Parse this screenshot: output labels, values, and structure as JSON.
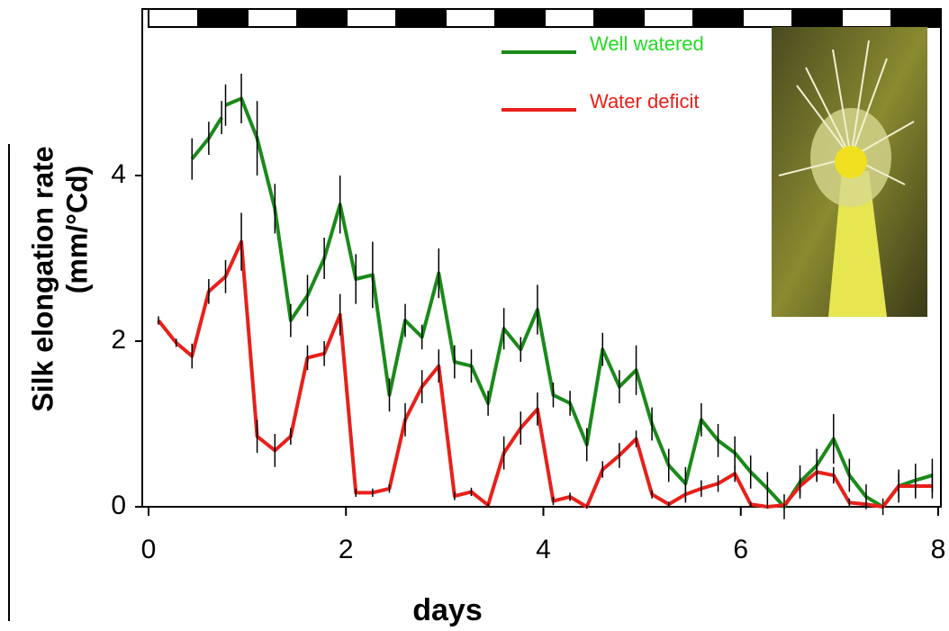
{
  "chart_data": {
    "type": "line",
    "xlabel": "days",
    "ylabel": [
      "Silk elongation rate",
      "(mm/°Cd)"
    ],
    "xlim": [
      0,
      8
    ],
    "xticks": [
      0,
      2,
      4,
      6,
      8
    ],
    "ylim": [
      0,
      6
    ],
    "yticks": [
      0,
      2,
      4
    ],
    "series": [
      {
        "name": "Well watered",
        "color": "#1a8a1a",
        "x": [
          0.44,
          0.61,
          0.74,
          0.76,
          0.78,
          0.94,
          1.1,
          1.28,
          1.44,
          1.61,
          1.78,
          1.94,
          2.1,
          2.27,
          2.44,
          2.6,
          2.77,
          2.94,
          3.1,
          3.27,
          3.44,
          3.6,
          3.77,
          3.94,
          4.1,
          4.27,
          4.44,
          4.6,
          4.77,
          4.94,
          5.1,
          5.27,
          5.44,
          5.6,
          5.77,
          5.94,
          6.1,
          6.27,
          6.44,
          6.6,
          6.77,
          6.94,
          7.1,
          7.27,
          7.44,
          7.6,
          7.77,
          7.94
        ],
        "values": [
          4.2,
          4.45,
          4.7,
          null,
          4.85,
          4.93,
          4.45,
          3.6,
          2.25,
          2.55,
          3.0,
          3.65,
          2.75,
          2.8,
          1.35,
          2.25,
          2.05,
          2.82,
          1.75,
          1.7,
          1.25,
          2.15,
          1.9,
          2.38,
          1.35,
          1.25,
          0.75,
          1.9,
          1.45,
          1.65,
          1.0,
          0.5,
          0.28,
          1.05,
          0.8,
          0.65,
          0.42,
          0.22,
          0.0,
          0.3,
          0.5,
          0.82,
          0.38,
          0.12,
          0.0,
          0.25,
          0.32,
          0.38
        ],
        "errors": [
          0.25,
          0.2,
          0.2,
          null,
          0.25,
          0.3,
          0.45,
          0.3,
          0.2,
          0.25,
          0.25,
          0.35,
          0.3,
          0.4,
          0.2,
          0.2,
          0.15,
          0.3,
          0.2,
          0.2,
          0.15,
          0.25,
          0.15,
          0.3,
          0.15,
          0.15,
          0.2,
          0.2,
          0.2,
          0.3,
          0.2,
          0.2,
          0.2,
          0.2,
          0.2,
          0.2,
          0.2,
          0.2,
          0.15,
          0.2,
          0.2,
          0.3,
          0.2,
          0.15,
          0.1,
          0.2,
          0.2,
          0.2
        ]
      },
      {
        "name": "Water deficit",
        "color": "#e8201a",
        "x": [
          0.1,
          0.28,
          0.44,
          0.61,
          0.78,
          0.94,
          1.1,
          1.28,
          1.44,
          1.61,
          1.78,
          1.94,
          2.1,
          2.27,
          2.44,
          2.6,
          2.77,
          2.94,
          3.1,
          3.27,
          3.44,
          3.6,
          3.77,
          3.94,
          4.1,
          4.27,
          4.44,
          4.6,
          4.77,
          4.94,
          5.1,
          5.27,
          5.44,
          5.6,
          5.77,
          5.94,
          6.1,
          6.27,
          6.44,
          6.6,
          6.77,
          6.94,
          7.1,
          7.27,
          7.44,
          7.6,
          7.77,
          7.94
        ],
        "values": [
          2.25,
          1.98,
          1.82,
          2.6,
          2.78,
          3.2,
          0.85,
          0.68,
          0.85,
          1.8,
          1.85,
          2.32,
          0.17,
          0.17,
          0.22,
          1.05,
          1.45,
          1.7,
          0.13,
          0.18,
          0.02,
          0.65,
          0.95,
          1.18,
          0.07,
          0.12,
          0.0,
          0.45,
          0.62,
          0.82,
          0.15,
          0.03,
          0.15,
          0.22,
          0.28,
          0.4,
          0.03,
          0.0,
          0.02,
          0.25,
          0.42,
          0.38,
          0.05,
          0.03,
          0.0,
          0.25,
          0.25,
          0.25
        ],
        "errors": [
          0.05,
          0.05,
          0.15,
          0.15,
          0.2,
          0.35,
          0.2,
          0.2,
          0.1,
          0.15,
          0.15,
          0.25,
          0.05,
          0.05,
          0.05,
          0.2,
          0.2,
          0.2,
          0.05,
          0.05,
          0.02,
          0.2,
          0.2,
          0.2,
          0.05,
          0.05,
          0.02,
          0.1,
          0.15,
          0.1,
          0.05,
          0.03,
          0.1,
          0.1,
          0.1,
          0.1,
          0.03,
          0.02,
          0.02,
          0.1,
          0.1,
          0.1,
          0.05,
          0.03,
          0.02,
          0.15,
          0.15,
          0.15
        ]
      }
    ]
  }
}
